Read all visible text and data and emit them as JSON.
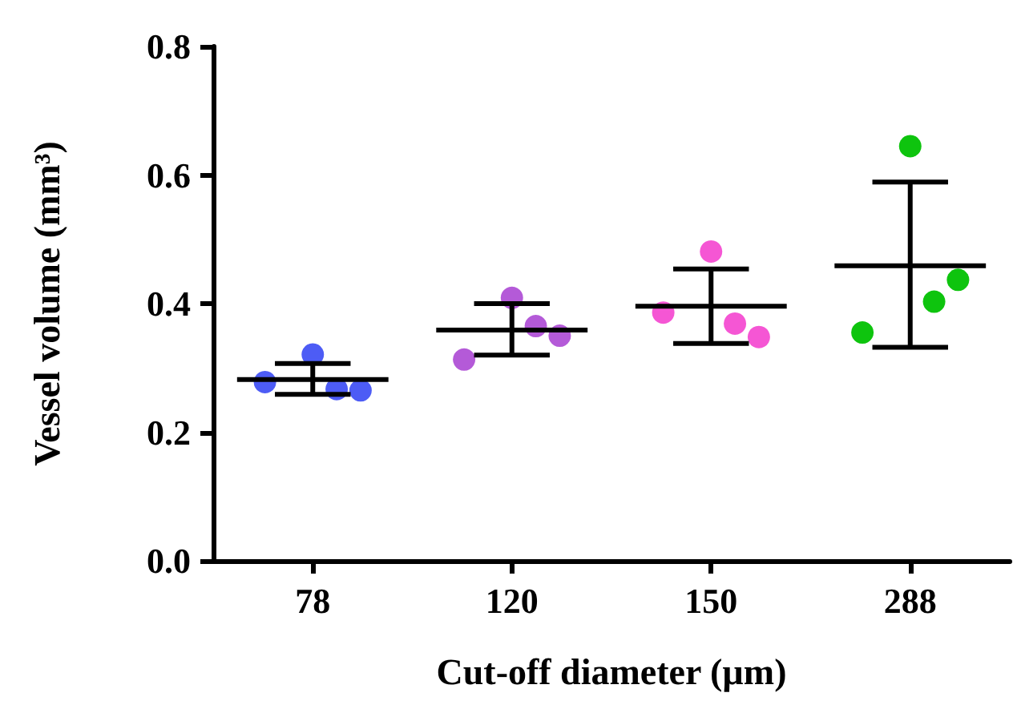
{
  "chart_data": {
    "type": "scatter",
    "xlabel": "Cut-off diameter (µm)",
    "ylabel": "Vessel volume (mm³)",
    "categories": [
      "78",
      "120",
      "150",
      "288"
    ],
    "ylim": [
      0,
      0.8
    ],
    "yticks": [
      {
        "value": 0,
        "label": "0.0"
      },
      0.2,
      0.4,
      0.6,
      0.8
    ],
    "grid": false,
    "marker": "circle",
    "series": [
      {
        "color": "#4d5cf5",
        "x": [
          "78",
          "78",
          "78",
          "78"
        ],
        "values": [
          0.278,
          0.321,
          0.265,
          0.267
        ]
      },
      {
        "color": "#b45ad8",
        "x": [
          "120",
          "120",
          "120",
          "120"
        ],
        "values": [
          0.313,
          0.409,
          0.35,
          0.365
        ]
      },
      {
        "color": "#f556d4",
        "x": [
          "150",
          "150",
          "150",
          "150"
        ],
        "values": [
          0.386,
          0.481,
          0.348,
          0.369
        ]
      },
      {
        "color": "#0ec40e",
        "x": [
          "288",
          "288",
          "288",
          "288"
        ],
        "values": [
          0.355,
          0.645,
          0.437,
          0.403
        ]
      },
      {
        "type": "box",
        "color": "#000000",
        "boxes": [
          {
            "low": 0.259,
            "q1": 0.282,
            "median": 0.282,
            "q3": 0.282,
            "high": 0.307
          },
          {
            "low": 0.32,
            "q1": 0.359,
            "median": 0.359,
            "q3": 0.359,
            "high": 0.4
          },
          {
            "low": 0.338,
            "q1": 0.396,
            "median": 0.396,
            "q3": 0.396,
            "high": 0.454
          },
          {
            "low": 0.332,
            "q1": 0.459,
            "median": 0.459,
            "q3": 0.459,
            "high": 0.589
          }
        ]
      }
    ]
  }
}
